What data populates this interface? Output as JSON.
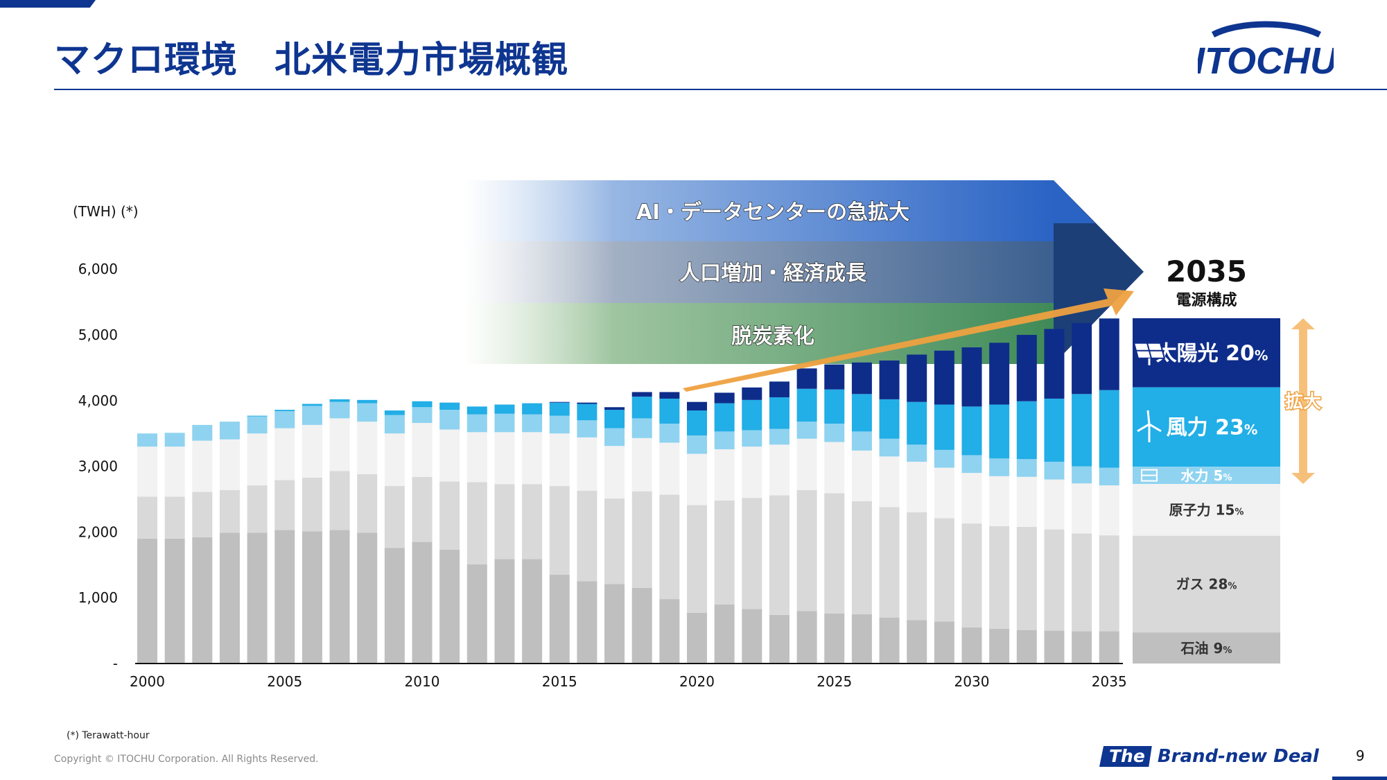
{
  "slide": {
    "title": "マクロ環境　北米電力市場概観",
    "logo_text": "ITOCHU",
    "footnote": "(*) Terawatt-hour",
    "copyright": "Copyright © ITOCHU Corporation. All Rights Reserved.",
    "tagline_the": "The",
    "tagline_rest": "Brand-new Deal",
    "page_number": "9"
  },
  "colors": {
    "brand": "#0e3590",
    "oil": "#bfbfbf",
    "gas": "#d9d9d9",
    "nuclear": "#f2f2f2",
    "hydro": "#8fd3f0",
    "wind": "#22aee6",
    "solar": "#0e2d8a",
    "arrow": "#eea140"
  },
  "banner": {
    "drivers": [
      "AI・データセンターの急拡大",
      "人口増加・経済成長",
      "脱炭素化"
    ]
  },
  "chart_data": {
    "type": "bar",
    "stacked": true,
    "unit_label": "(TWH) (*)",
    "ylim": [
      0,
      6000
    ],
    "yticks": [
      {
        "value": 0,
        "label": "-"
      },
      {
        "value": 1000,
        "label": "1,000"
      },
      {
        "value": 2000,
        "label": "2,000"
      },
      {
        "value": 3000,
        "label": "3,000"
      },
      {
        "value": 4000,
        "label": "4,000"
      },
      {
        "value": 5000,
        "label": "5,000"
      },
      {
        "value": 6000,
        "label": "6,000"
      }
    ],
    "xtick_labels": [
      "2000",
      "2005",
      "2010",
      "2015",
      "2020",
      "2025",
      "2030",
      "2035"
    ],
    "categories": [
      "2000",
      "2001",
      "2002",
      "2003",
      "2004",
      "2005",
      "2006",
      "2007",
      "2008",
      "2009",
      "2010",
      "2011",
      "2012",
      "2013",
      "2014",
      "2015",
      "2016",
      "2017",
      "2018",
      "2019",
      "2020",
      "2021",
      "2022",
      "2023",
      "2024",
      "2025",
      "2026",
      "2027",
      "2028",
      "2029",
      "2030",
      "2031",
      "2032",
      "2033",
      "2034",
      "2035"
    ],
    "series": [
      {
        "key": "oil",
        "values": [
          1900,
          1900,
          1920,
          1990,
          1990,
          2030,
          2010,
          2030,
          1990,
          1760,
          1850,
          1730,
          1510,
          1590,
          1590,
          1350,
          1250,
          1210,
          1150,
          980,
          770,
          900,
          830,
          740,
          800,
          760,
          750,
          700,
          660,
          640,
          550,
          530,
          510,
          500,
          490,
          490
        ]
      },
      {
        "key": "gas",
        "values": [
          640,
          640,
          690,
          650,
          720,
          760,
          820,
          900,
          890,
          940,
          990,
          1040,
          1250,
          1140,
          1140,
          1350,
          1380,
          1300,
          1470,
          1590,
          1640,
          1580,
          1690,
          1820,
          1840,
          1830,
          1720,
          1680,
          1640,
          1570,
          1580,
          1560,
          1570,
          1540,
          1490,
          1460
        ]
      },
      {
        "key": "nuclear",
        "values": [
          760,
          760,
          780,
          770,
          790,
          790,
          800,
          800,
          800,
          800,
          820,
          790,
          760,
          790,
          790,
          800,
          810,
          800,
          810,
          790,
          780,
          780,
          780,
          770,
          780,
          780,
          770,
          770,
          770,
          770,
          770,
          760,
          760,
          760,
          760,
          760
        ]
      },
      {
        "key": "hydro",
        "values": [
          200,
          210,
          240,
          270,
          260,
          260,
          290,
          250,
          280,
          280,
          240,
          300,
          270,
          280,
          270,
          270,
          260,
          270,
          300,
          290,
          280,
          270,
          250,
          240,
          260,
          280,
          290,
          270,
          260,
          270,
          270,
          270,
          270,
          270,
          260,
          270
        ]
      },
      {
        "key": "wind",
        "values": [
          0,
          0,
          0,
          0,
          10,
          20,
          30,
          40,
          50,
          70,
          90,
          110,
          120,
          140,
          170,
          200,
          250,
          280,
          330,
          380,
          380,
          430,
          460,
          480,
          500,
          520,
          570,
          600,
          650,
          690,
          740,
          820,
          880,
          960,
          1100,
          1180
        ]
      },
      {
        "key": "solar",
        "values": [
          0,
          0,
          0,
          0,
          0,
          0,
          0,
          0,
          0,
          0,
          0,
          0,
          0,
          0,
          0,
          10,
          20,
          40,
          70,
          100,
          130,
          160,
          190,
          240,
          310,
          380,
          480,
          590,
          720,
          820,
          900,
          940,
          1010,
          1060,
          1080,
          1090
        ]
      }
    ],
    "composition_2035": {
      "year": "2035",
      "caption": "電源構成",
      "expand_label": "拡大",
      "segments": [
        {
          "key": "solar",
          "label": "太陽光",
          "percent": 20,
          "icon": "solar-panel-icon"
        },
        {
          "key": "wind",
          "label": "風力",
          "percent": 23,
          "icon": "wind-turbine-icon"
        },
        {
          "key": "hydro",
          "label": "水力",
          "percent": 5,
          "icon": "dam-icon"
        },
        {
          "key": "nuclear",
          "label": "原子力",
          "percent": 15
        },
        {
          "key": "gas",
          "label": "ガス",
          "percent": 28
        },
        {
          "key": "oil",
          "label": "石油",
          "percent": 9
        }
      ]
    }
  }
}
